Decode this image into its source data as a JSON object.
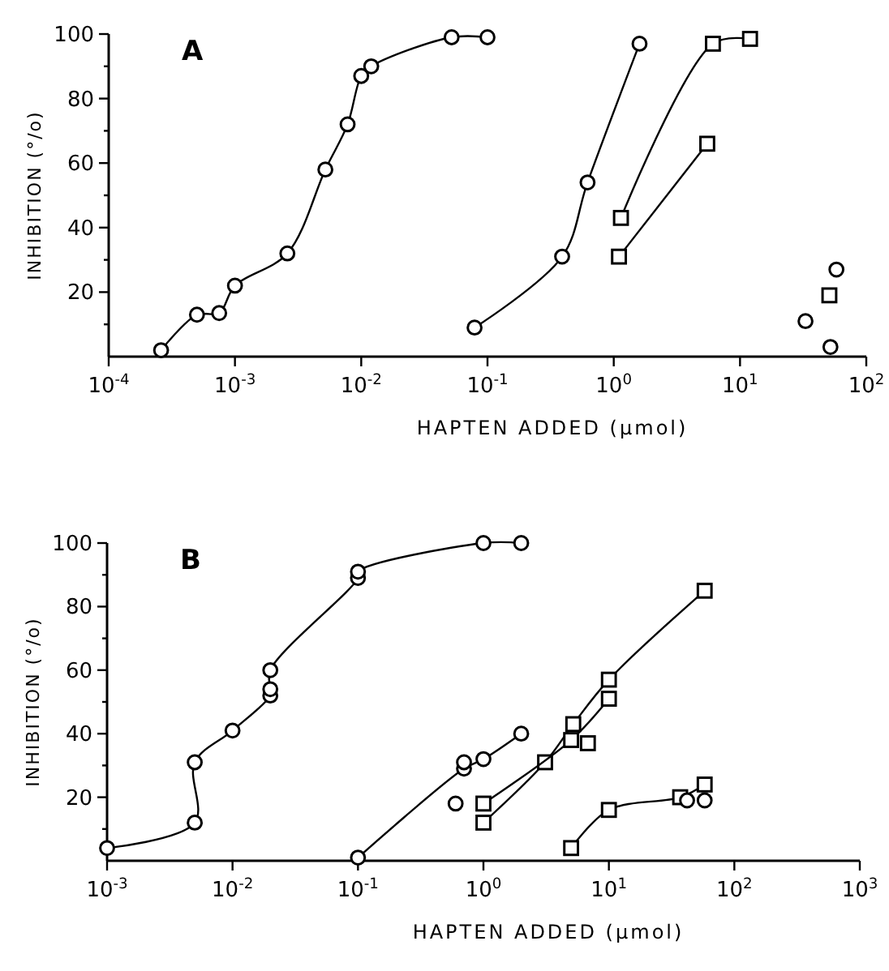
{
  "chart_data": [
    {
      "type": "line",
      "title": "A",
      "xlabel": "HAPTEN ADDED (μmol)",
      "ylabel": "INHIBITION (°/o)",
      "log": "x",
      "grid": false,
      "xlim": [
        0.0001,
        100
      ],
      "xticks": [
        {
          "value": 0.0001,
          "label": "10$^{-4}$"
        },
        {
          "value": 0.001,
          "label": "10$^{-3}$"
        },
        {
          "value": 0.01,
          "label": "10$^{-2}$"
        },
        {
          "value": 0.1,
          "label": "10$^{-1}$"
        },
        {
          "value": 1,
          "label": "10$^{0}$"
        },
        {
          "value": 10,
          "label": "10$^{1}$"
        },
        {
          "value": 100,
          "label": "10$^{2}$"
        }
      ],
      "ylim": [
        0,
        100
      ],
      "yticks": [
        {
          "value": 10,
          "label": null
        },
        20,
        {
          "value": 30,
          "label": null
        },
        40,
        {
          "value": 50,
          "label": null
        },
        60,
        {
          "value": 70,
          "label": null
        },
        80,
        {
          "value": 90,
          "label": null
        },
        100
      ],
      "series": [
        {
          "type": "line",
          "marker": "circle",
          "color": "#000000",
          "x": [
            0.00026,
            0.0005,
            0.00075,
            0.001,
            0.0026,
            0.0052,
            0.0078,
            0.01,
            0.012,
            0.052,
            0.1
          ],
          "values": [
            2,
            13,
            13.5,
            22,
            32,
            58,
            72,
            87,
            90,
            99,
            99
          ]
        },
        {
          "type": "line",
          "marker": "circle",
          "color": "#000000",
          "x": [
            0.079,
            0.39,
            0.62,
            1.6
          ],
          "values": [
            9,
            31,
            54,
            97
          ]
        },
        {
          "type": "line",
          "marker": "square",
          "color": "#000000",
          "x": [
            1.14,
            6.1,
            12
          ],
          "values": [
            43,
            97,
            98.5
          ]
        },
        {
          "type": "line",
          "marker": "square",
          "color": "#000000",
          "x": [
            1.1,
            5.5
          ],
          "values": [
            31,
            66
          ]
        },
        {
          "type": "scatter",
          "marker": "circle",
          "color": "#000000",
          "x": [
            33,
            58,
            52
          ],
          "values": [
            11,
            27,
            3
          ]
        },
        {
          "type": "scatter",
          "marker": "square",
          "color": "#000000",
          "x": [
            51
          ],
          "values": [
            19
          ]
        }
      ]
    },
    {
      "type": "line",
      "title": "B",
      "xlabel": "HAPTEN ADDED (μmol)",
      "ylabel": "INHIBITION (°/o)",
      "log": "x",
      "grid": false,
      "xlim": [
        0.001,
        1000
      ],
      "xticks": [
        {
          "value": 0.001,
          "label": "10$^{-3}$"
        },
        {
          "value": 0.01,
          "label": "10$^{-2}$"
        },
        {
          "value": 0.1,
          "label": "10$^{-1}$"
        },
        {
          "value": 1,
          "label": "10$^{0}$"
        },
        {
          "value": 10,
          "label": "10$^{1}$"
        },
        {
          "value": 100,
          "label": "10$^{2}$"
        },
        {
          "value": 1000,
          "label": "10$^{3}$"
        }
      ],
      "ylim": [
        0,
        100
      ],
      "yticks": [
        {
          "value": 10,
          "label": null
        },
        20,
        {
          "value": 30,
          "label": null
        },
        40,
        {
          "value": 50,
          "label": null
        },
        60,
        {
          "value": 70,
          "label": null
        },
        80,
        {
          "value": 90,
          "label": null
        },
        100
      ],
      "series": [
        {
          "type": "line",
          "marker": "circle",
          "color": "#000000",
          "x": [
            0.001,
            0.005,
            0.005,
            0.01,
            0.02,
            0.02,
            0.02,
            0.1,
            0.1,
            1,
            2
          ],
          "values": [
            4,
            12,
            31,
            41,
            52,
            54,
            60,
            89,
            91,
            100,
            100
          ]
        },
        {
          "type": "line",
          "marker": "circle",
          "color": "#000000",
          "x": [
            0.1,
            0.7,
            1,
            2
          ],
          "values": [
            1,
            29,
            32,
            40
          ]
        },
        {
          "type": "scatter",
          "marker": "circle",
          "color": "#000000",
          "x": [
            0.6,
            0.7
          ],
          "values": [
            18,
            31
          ]
        },
        {
          "type": "line",
          "marker": "square",
          "color": "#000000",
          "x": [
            1,
            3.1,
            5.2,
            10,
            58
          ],
          "values": [
            12,
            31,
            43,
            57,
            85
          ]
        },
        {
          "type": "scatter",
          "marker": "square",
          "color": "#000000",
          "x": [
            6.8
          ],
          "values": [
            37
          ]
        },
        {
          "type": "line",
          "marker": "square",
          "color": "#000000",
          "x": [
            1,
            5,
            10
          ],
          "values": [
            18,
            38,
            51
          ]
        },
        {
          "type": "line",
          "marker": "square",
          "color": "#000000",
          "x": [
            5,
            10,
            37,
            58
          ],
          "values": [
            4,
            16,
            20,
            24
          ]
        },
        {
          "type": "scatter",
          "marker": "circle",
          "color": "#000000",
          "x": [
            42,
            58
          ],
          "values": [
            19,
            19
          ]
        }
      ]
    }
  ]
}
